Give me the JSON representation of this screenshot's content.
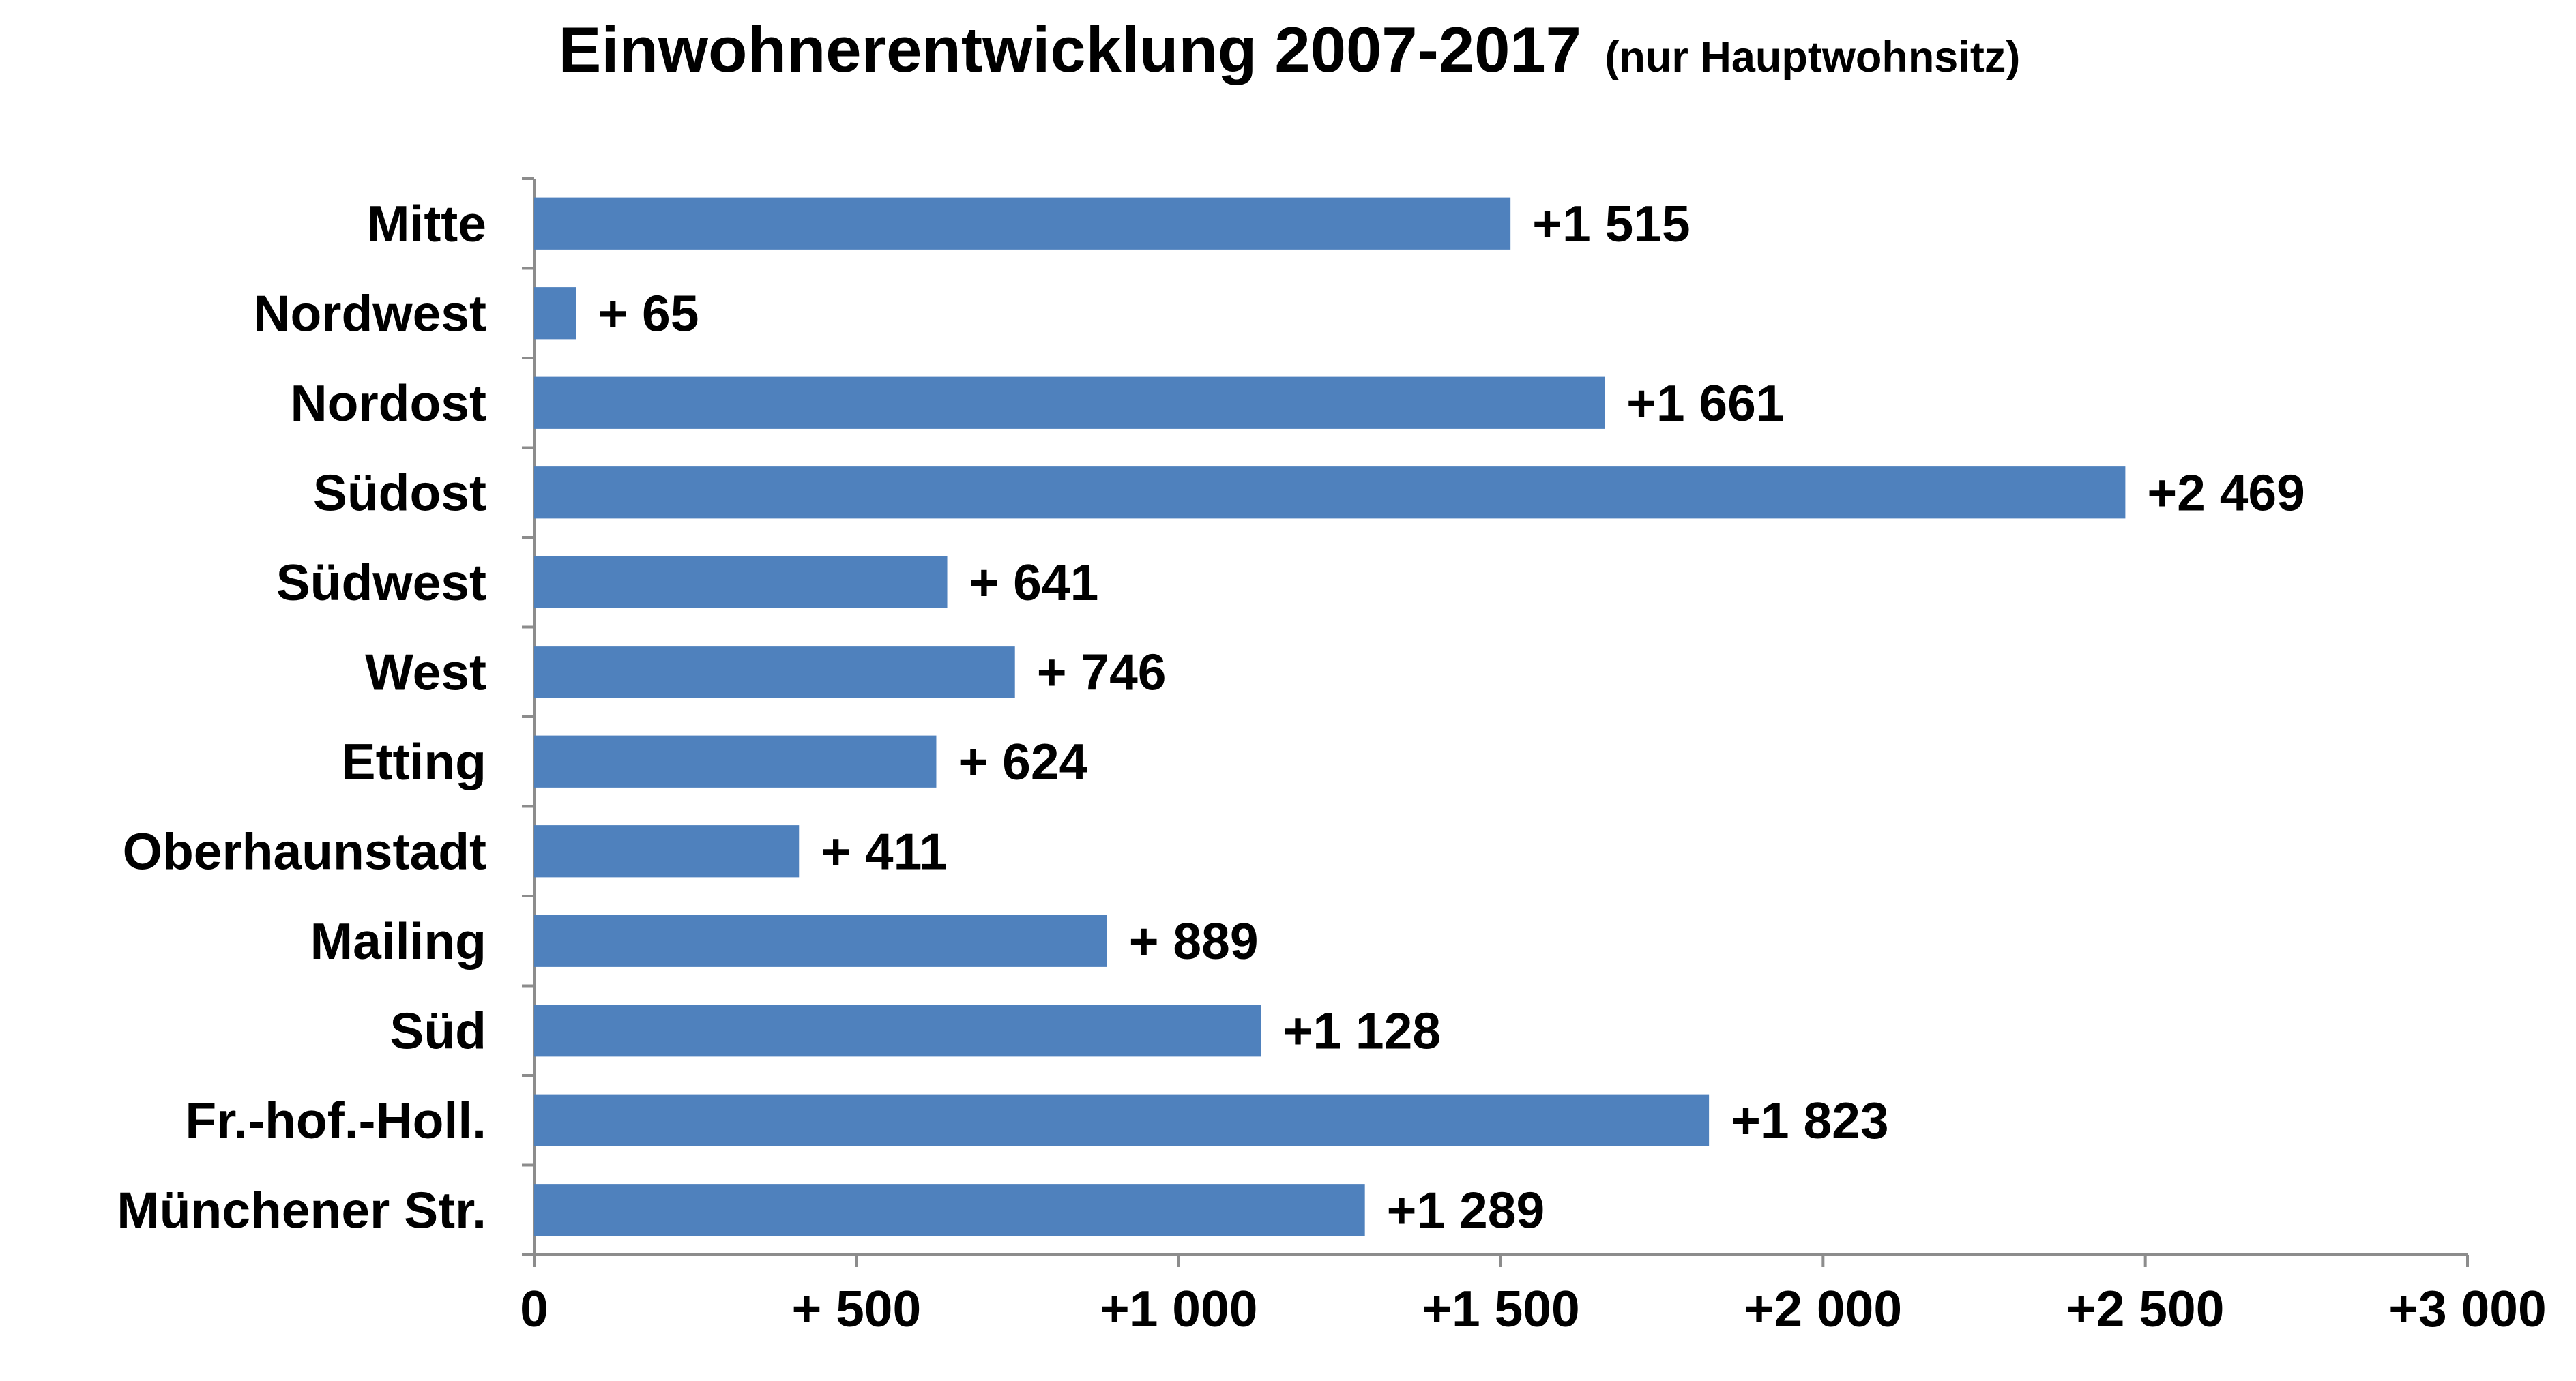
{
  "chart_data": {
    "type": "bar",
    "orientation": "horizontal",
    "title": "Einwohnerentwicklung 2007-2017",
    "subtitle": "(nur Hauptwohnsitz)",
    "categories": [
      "Mitte",
      "Nordwest",
      "Nordost",
      "Südost",
      "Südwest",
      "West",
      "Etting",
      "Oberhaunstadt",
      "Mailing",
      "Süd",
      "Fr.-hof.-Holl.",
      "Münchener Str."
    ],
    "values": [
      1515,
      65,
      1661,
      2469,
      641,
      746,
      624,
      411,
      889,
      1128,
      1823,
      1289
    ],
    "value_labels": [
      "+1 515",
      "+ 65",
      "+1 661",
      "+2 469",
      "+ 641",
      "+ 746",
      "+ 624",
      "+ 411",
      "+ 889",
      "+1 128",
      "+1 823",
      "+1 289"
    ],
    "xlim": [
      0,
      3000
    ],
    "ticks": [
      0,
      500,
      1000,
      1500,
      2000,
      2500,
      3000
    ],
    "tick_labels": [
      "0",
      "+ 500",
      "+1 000",
      "+1 500",
      "+2 000",
      "+2 500",
      "+3 000"
    ],
    "xlabel": "",
    "ylabel": "",
    "grid": false,
    "legend": "none",
    "bar_color": "#4f81bd"
  }
}
